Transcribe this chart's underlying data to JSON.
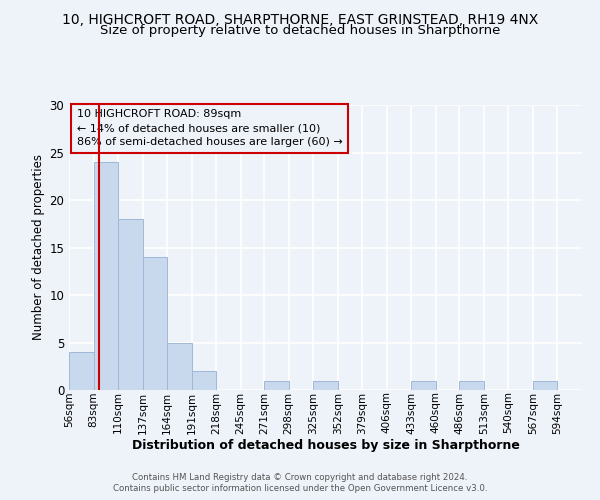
{
  "title1": "10, HIGHCROFT ROAD, SHARPTHORNE, EAST GRINSTEAD, RH19 4NX",
  "title2": "Size of property relative to detached houses in Sharpthorne",
  "xlabel": "Distribution of detached houses by size in Sharpthorne",
  "ylabel": "Number of detached properties",
  "bin_edges": [
    56,
    83,
    110,
    137,
    164,
    191,
    218,
    245,
    271,
    298,
    325,
    352,
    379,
    406,
    433,
    460,
    486,
    513,
    540,
    567,
    594
  ],
  "bar_heights": [
    4,
    24,
    18,
    14,
    5,
    2,
    0,
    0,
    1,
    0,
    1,
    0,
    0,
    0,
    1,
    0,
    1,
    0,
    0,
    1
  ],
  "bar_color": "#c9d9ed",
  "bar_edge_color": "#a0b8d8",
  "property_value": 89,
  "annotation_line1": "10 HIGHCROFT ROAD: 89sqm",
  "annotation_line2": "← 14% of detached houses are smaller (10)",
  "annotation_line3": "86% of semi-detached houses are larger (60) →",
  "red_line_color": "#cc0000",
  "ylim": [
    0,
    30
  ],
  "yticks": [
    0,
    5,
    10,
    15,
    20,
    25,
    30
  ],
  "footer1": "Contains HM Land Registry data © Crown copyright and database right 2024.",
  "footer2": "Contains public sector information licensed under the Open Government Licence v3.0.",
  "background_color": "#eef2f9",
  "grid_color": "#ffffff",
  "title1_fontsize": 10,
  "title2_fontsize": 9.5,
  "annot_fontsize": 8,
  "ylabel_fontsize": 8.5,
  "xlabel_fontsize": 9,
  "tick_fontsize": 7.5,
  "ytick_fontsize": 8.5,
  "footer_fontsize": 6.2
}
